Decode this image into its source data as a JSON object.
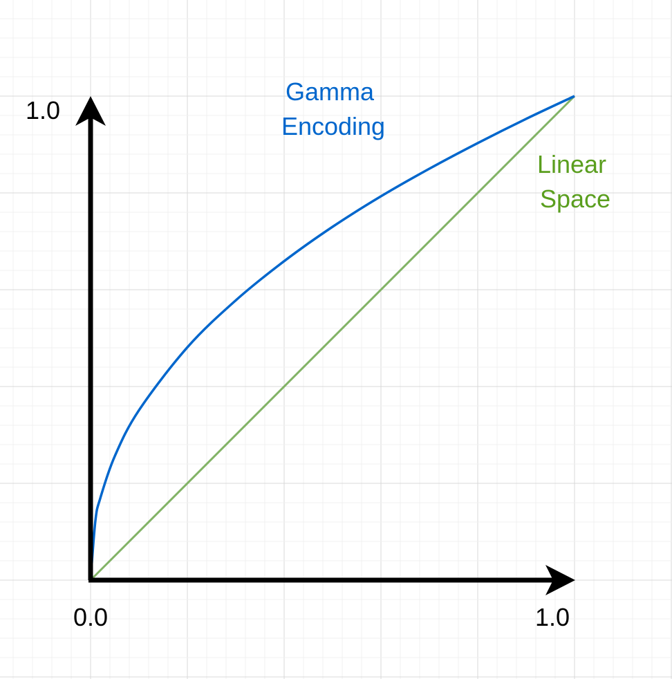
{
  "chart_data": {
    "type": "line",
    "title": "",
    "xlabel": "",
    "ylabel": "",
    "xlim": [
      0,
      1
    ],
    "ylim": [
      0,
      1
    ],
    "grid": true,
    "tick_labels": {
      "x_min": "0.0",
      "x_max": "1.0",
      "y_max": "1.0"
    },
    "series": [
      {
        "name": "Gamma Encoding",
        "name_lines": [
          "Gamma",
          "Encoding"
        ],
        "color": "#0066cc",
        "x": [
          0,
          0.01,
          0.02,
          0.05,
          0.1,
          0.2,
          0.3,
          0.4,
          0.5,
          0.6,
          0.7,
          0.8,
          0.9,
          1.0
        ],
        "y": [
          0,
          0.123,
          0.169,
          0.256,
          0.351,
          0.481,
          0.578,
          0.659,
          0.73,
          0.793,
          0.85,
          0.903,
          0.953,
          1.0
        ]
      },
      {
        "name": "Linear Space",
        "name_lines": [
          "Linear",
          "Space"
        ],
        "color": "#5a9e1e",
        "x": [
          0,
          1
        ],
        "y": [
          0,
          1
        ]
      }
    ],
    "colors": {
      "axis": "#000000",
      "grid_major": "#d9d9d9",
      "grid_minor": "#f0f0f0",
      "linear_line": "#82b366",
      "gamma_line": "#0066cc"
    }
  }
}
